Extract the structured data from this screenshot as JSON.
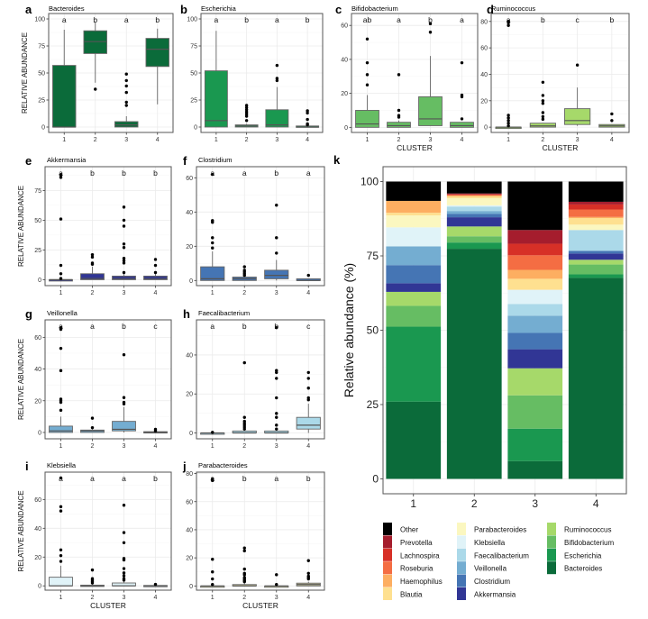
{
  "chart_data": [
    {
      "panel": "a",
      "type": "box",
      "title": "Bacteroides",
      "ylabel": "RELATIVE ABUNDANCE",
      "xlabel": "",
      "categories": [
        "1",
        "2",
        "3",
        "4"
      ],
      "ylim": [
        -5,
        105
      ],
      "yticks": [
        0,
        25,
        50,
        75,
        100
      ],
      "fill": "#0b6b3a",
      "letters": [
        "a",
        "b",
        "a",
        "b"
      ],
      "boxes": [
        {
          "q1": 0,
          "median": 0,
          "q3": 57,
          "lo": 0,
          "hi": 90,
          "outliers": []
        },
        {
          "q1": 68,
          "median": 79,
          "q3": 89,
          "lo": 41,
          "hi": 97,
          "outliers": [
            35
          ]
        },
        {
          "q1": 0,
          "median": 2,
          "q3": 5,
          "lo": 0,
          "hi": 10,
          "outliers": [
            20,
            23,
            32,
            38,
            43,
            49
          ]
        },
        {
          "q1": 56,
          "median": 72,
          "q3": 82,
          "lo": 21,
          "hi": 91,
          "outliers": []
        }
      ]
    },
    {
      "panel": "b",
      "type": "box",
      "title": "Escherichia",
      "ylabel": "",
      "xlabel": "",
      "categories": [
        "1",
        "2",
        "3",
        "4"
      ],
      "ylim": [
        -5,
        105
      ],
      "yticks": [
        0,
        25,
        50,
        75,
        100
      ],
      "fill": "#1a9850",
      "letters": [
        "a",
        "b",
        "a",
        "b"
      ],
      "boxes": [
        {
          "q1": 0,
          "median": 6,
          "q3": 52,
          "lo": 0,
          "hi": 89,
          "outliers": []
        },
        {
          "q1": 0,
          "median": 1,
          "q3": 2,
          "lo": 0,
          "hi": 3,
          "outliers": [
            6,
            10,
            12,
            14,
            16,
            18,
            20
          ]
        },
        {
          "q1": 0,
          "median": 2,
          "q3": 16,
          "lo": 0,
          "hi": 37,
          "outliers": [
            43,
            45,
            57
          ]
        },
        {
          "q1": 0,
          "median": 0,
          "q3": 1,
          "lo": 0,
          "hi": 1,
          "outliers": [
            2,
            3,
            7,
            13,
            15
          ]
        }
      ]
    },
    {
      "panel": "c",
      "type": "box",
      "title": "Bifidobacterium",
      "ylabel": "",
      "xlabel": "CLUSTER",
      "categories": [
        "1",
        "2",
        "3",
        "4"
      ],
      "ylim": [
        -3,
        67
      ],
      "yticks": [
        0,
        20,
        40,
        60
      ],
      "fill": "#66bd63",
      "letters": [
        "ab",
        "a",
        "b",
        "a"
      ],
      "boxes": [
        {
          "q1": 0,
          "median": 2,
          "q3": 10,
          "lo": 0,
          "hi": 19,
          "outliers": [
            25,
            31,
            38,
            52
          ]
        },
        {
          "q1": 0,
          "median": 1,
          "q3": 3,
          "lo": 0,
          "hi": 4,
          "outliers": [
            6,
            7,
            10,
            31
          ]
        },
        {
          "q1": 1,
          "median": 5,
          "q3": 18,
          "lo": 1,
          "hi": 42,
          "outliers": [
            56,
            61
          ]
        },
        {
          "q1": 0,
          "median": 1,
          "q3": 3,
          "lo": 0,
          "hi": 3,
          "outliers": [
            5,
            18,
            19,
            38
          ]
        }
      ]
    },
    {
      "panel": "d",
      "type": "box",
      "title": "Ruminococcus",
      "ylabel": "",
      "xlabel": "CLUSTER",
      "categories": [
        "1",
        "2",
        "3",
        "4"
      ],
      "ylim": [
        -4,
        86
      ],
      "yticks": [
        0,
        20,
        40,
        60,
        80
      ],
      "fill": "#a6d96a",
      "letters": [
        "a",
        "b",
        "c",
        "b"
      ],
      "boxes": [
        {
          "q1": 0,
          "median": 0,
          "q3": 0,
          "lo": 0,
          "hi": 0,
          "outliers": [
            1,
            3,
            5,
            7,
            9,
            77,
            79,
            80
          ]
        },
        {
          "q1": 0,
          "median": 1,
          "q3": 3,
          "lo": 0,
          "hi": 3,
          "outliers": [
            6,
            8,
            11,
            18,
            20,
            24,
            34
          ]
        },
        {
          "q1": 2,
          "median": 5,
          "q3": 14,
          "lo": 1,
          "hi": 30,
          "outliers": [
            47
          ]
        },
        {
          "q1": 0,
          "median": 1,
          "q3": 2,
          "lo": 0,
          "hi": 2,
          "outliers": [
            5,
            10
          ]
        }
      ]
    },
    {
      "panel": "e",
      "type": "box",
      "title": "Akkermansia",
      "ylabel": "RELATIVE ABUNDANCE",
      "xlabel": "",
      "categories": [
        "1",
        "2",
        "3",
        "4"
      ],
      "ylim": [
        -5,
        95
      ],
      "yticks": [
        0,
        25,
        50,
        75
      ],
      "fill": "#313695",
      "letters": [
        "a",
        "b",
        "b",
        "b"
      ],
      "boxes": [
        {
          "q1": 0,
          "median": 0,
          "q3": 0,
          "lo": 0,
          "hi": 0,
          "outliers": [
            1,
            5,
            12,
            51,
            86,
            88
          ]
        },
        {
          "q1": 0,
          "median": 1,
          "q3": 5,
          "lo": 0,
          "hi": 11,
          "outliers": [
            13,
            14,
            19,
            21
          ]
        },
        {
          "q1": 0,
          "median": 1,
          "q3": 3,
          "lo": 0,
          "hi": 5,
          "outliers": [
            6,
            14,
            16,
            18,
            27,
            30,
            45,
            50,
            61
          ]
        },
        {
          "q1": 0,
          "median": 1,
          "q3": 3,
          "lo": 0,
          "hi": 5,
          "outliers": [
            6,
            12,
            17
          ]
        }
      ]
    },
    {
      "panel": "f",
      "type": "box",
      "title": "Clostridium",
      "ylabel": "",
      "xlabel": "",
      "categories": [
        "1",
        "2",
        "3",
        "4"
      ],
      "ylim": [
        -3,
        66.5
      ],
      "yticks": [
        0,
        20,
        40,
        60
      ],
      "fill": "#4575b4",
      "letters": [
        "a",
        "a",
        "b",
        "a"
      ],
      "boxes": [
        {
          "q1": 0,
          "median": 1,
          "q3": 8,
          "lo": 0,
          "hi": 17,
          "outliers": [
            19,
            22,
            25,
            34,
            35,
            62
          ]
        },
        {
          "q1": 0,
          "median": 1,
          "q3": 2,
          "lo": 0,
          "hi": 2,
          "outliers": [
            3,
            4,
            5,
            6,
            8
          ]
        },
        {
          "q1": 1,
          "median": 3,
          "q3": 6,
          "lo": 0,
          "hi": 12,
          "outliers": [
            16,
            25,
            44
          ]
        },
        {
          "q1": 0,
          "median": 0,
          "q3": 1,
          "lo": 0,
          "hi": 1,
          "outliers": [
            3
          ]
        }
      ]
    },
    {
      "panel": "g",
      "type": "box",
      "title": "Veillonella",
      "ylabel": "RELATIVE ABUNDANCE",
      "xlabel": "",
      "categories": [
        "1",
        "2",
        "3",
        "4"
      ],
      "ylim": [
        -4,
        71
      ],
      "yticks": [
        0,
        20,
        40,
        60
      ],
      "fill": "#74add1",
      "letters": [
        "a",
        "a",
        "b",
        "c"
      ],
      "boxes": [
        {
          "q1": 0,
          "median": 1,
          "q3": 4,
          "lo": 0,
          "hi": 10,
          "outliers": [
            14,
            19,
            20,
            21,
            39,
            53,
            65,
            66
          ]
        },
        {
          "q1": 0,
          "median": 1,
          "q3": 1.5,
          "lo": 0,
          "hi": 2,
          "outliers": [
            3,
            9
          ]
        },
        {
          "q1": 1,
          "median": 2,
          "q3": 7,
          "lo": 0,
          "hi": 16,
          "outliers": [
            18,
            19,
            22,
            49
          ]
        },
        {
          "q1": 0,
          "median": 0,
          "q3": 0.5,
          "lo": 0,
          "hi": 0.5,
          "outliers": [
            1,
            2
          ]
        }
      ]
    },
    {
      "panel": "h",
      "type": "box",
      "title": "Faecalibacterium",
      "ylabel": "",
      "xlabel": "",
      "categories": [
        "1",
        "2",
        "3",
        "4"
      ],
      "ylim": [
        -3,
        58
      ],
      "yticks": [
        0,
        20,
        40
      ],
      "fill": "#abd9e9",
      "letters": [
        "a",
        "b",
        "b",
        "c"
      ],
      "boxes": [
        {
          "q1": 0,
          "median": 0,
          "q3": 0,
          "lo": 0,
          "hi": 0,
          "outliers": [
            0.3
          ]
        },
        {
          "q1": 0,
          "median": 0,
          "q3": 1,
          "lo": 0,
          "hi": 1,
          "outliers": [
            2,
            3,
            4,
            5,
            6,
            8,
            36
          ]
        },
        {
          "q1": 0,
          "median": 0,
          "q3": 1,
          "lo": 0,
          "hi": 1,
          "outliers": [
            2,
            4,
            8,
            10,
            18,
            28,
            31,
            32,
            54
          ]
        },
        {
          "q1": 2,
          "median": 4,
          "q3": 8,
          "lo": 0,
          "hi": 15,
          "outliers": [
            17,
            18,
            23,
            28,
            31
          ]
        }
      ]
    },
    {
      "panel": "i",
      "type": "box",
      "title": "Klebsiella",
      "ylabel": "RELATIVE ABUNDANCE",
      "xlabel": "CLUSTER",
      "categories": [
        "1",
        "2",
        "3",
        "4"
      ],
      "ylim": [
        -3,
        79
      ],
      "yticks": [
        0,
        20,
        40,
        60
      ],
      "fill": "#e0f3f8",
      "letters": [
        "a",
        "a",
        "a",
        "b"
      ],
      "boxes": [
        {
          "q1": 0,
          "median": 0,
          "q3": 6,
          "lo": 0,
          "hi": 14,
          "outliers": [
            17,
            21,
            25,
            52,
            55,
            75
          ]
        },
        {
          "q1": 0,
          "median": 0,
          "q3": 0.5,
          "lo": 0,
          "hi": 1,
          "outliers": [
            2,
            3,
            4,
            5,
            11
          ]
        },
        {
          "q1": 0,
          "median": 0,
          "q3": 2,
          "lo": 0,
          "hi": 3,
          "outliers": [
            4,
            5,
            7,
            9,
            12,
            18,
            19,
            30,
            37,
            56
          ]
        },
        {
          "q1": 0,
          "median": 0,
          "q3": 0.3,
          "lo": 0,
          "hi": 0.3,
          "outliers": [
            1
          ]
        }
      ]
    },
    {
      "panel": "j",
      "type": "box",
      "title": "Parabacteroides",
      "ylabel": "",
      "xlabel": "CLUSTER",
      "categories": [
        "1",
        "2",
        "3",
        "4"
      ],
      "ylim": [
        -3,
        81
      ],
      "yticks": [
        0,
        20,
        40,
        60,
        80
      ],
      "fill": "#d9d6a6",
      "letters": [
        "a",
        "b",
        "a",
        "b"
      ],
      "boxes": [
        {
          "q1": 0,
          "median": 0,
          "q3": 0,
          "lo": 0,
          "hi": 0,
          "outliers": [
            1,
            5,
            10,
            19,
            75,
            76
          ]
        },
        {
          "q1": 0,
          "median": 0,
          "q3": 1,
          "lo": 0,
          "hi": 2,
          "outliers": [
            3,
            4,
            5,
            6,
            8,
            9,
            12,
            25,
            27
          ]
        },
        {
          "q1": 0,
          "median": 0,
          "q3": 0,
          "lo": 0,
          "hi": 0,
          "outliers": [
            1,
            8
          ]
        },
        {
          "q1": 0,
          "median": 1,
          "q3": 2,
          "lo": 0,
          "hi": 3,
          "outliers": [
            5,
            6,
            7,
            9,
            18
          ]
        }
      ]
    },
    {
      "panel": "k",
      "type": "bar",
      "stacked": true,
      "title": "",
      "ylabel": "Relative abundance (%)",
      "xlabel": "",
      "categories": [
        "1",
        "2",
        "3",
        "4"
      ],
      "ylim": [
        -5,
        105
      ],
      "yticks": [
        0,
        25,
        50,
        75,
        100
      ],
      "legend_placement": "bottom",
      "series": [
        {
          "name": "Bacteroides",
          "color": "#0b6b3a",
          "values": [
            26.0,
            77.4,
            6.0,
            67.6
          ]
        },
        {
          "name": "Escherichia",
          "color": "#1a9850",
          "values": [
            25.2,
            2.1,
            10.9,
            1.2
          ]
        },
        {
          "name": "Bifidobacterium",
          "color": "#66bd63",
          "values": [
            7.0,
            2.1,
            11.2,
            3.3
          ]
        },
        {
          "name": "Ruminococcus",
          "color": "#a6d96a",
          "values": [
            4.7,
            3.3,
            9.1,
            1.6
          ]
        },
        {
          "name": "Akkermansia",
          "color": "#313695",
          "values": [
            2.9,
            3.1,
            6.4,
            2.1
          ]
        },
        {
          "name": "Clostridium",
          "color": "#4575b4",
          "values": [
            6.1,
            1.1,
            5.5,
            0.9
          ]
        },
        {
          "name": "Veillonella",
          "color": "#74add1",
          "values": [
            6.3,
            1.0,
            5.8,
            0
          ]
        },
        {
          "name": "Faecalibacterium",
          "color": "#abd9e9",
          "values": [
            0,
            1.5,
            3.9,
            7.0
          ]
        },
        {
          "name": "Klebsiella",
          "color": "#e0f3f8",
          "values": [
            6.4,
            0.4,
            4.8,
            0
          ]
        },
        {
          "name": "Parabacteroides",
          "color": "#fbf7c0",
          "values": [
            4.0,
            2.4,
            0,
            1.8
          ]
        },
        {
          "name": "Blautia",
          "color": "#fee090",
          "values": [
            0.9,
            0.6,
            3.7,
            2.2
          ]
        },
        {
          "name": "Haemophilus",
          "color": "#fdae61",
          "values": [
            4.0,
            0.3,
            3.0,
            0.4
          ]
        },
        {
          "name": "Roseburia",
          "color": "#f46d43",
          "values": [
            0,
            0.2,
            4.9,
            2.5
          ]
        },
        {
          "name": "Lachnospira",
          "color": "#d73027",
          "values": [
            0,
            0.2,
            3.9,
            1.7
          ]
        },
        {
          "name": "Prevotella",
          "color": "#a51d2d",
          "values": [
            0,
            0.3,
            4.6,
            0.9
          ]
        },
        {
          "name": "Other",
          "color": "#000000",
          "values": [
            6.5,
            4.0,
            16.3,
            6.8
          ]
        }
      ],
      "legend_order": [
        "Other",
        "Prevotella",
        "Lachnospira",
        "Roseburia",
        "Haemophilus",
        "Blautia",
        "Parabacteroides",
        "Klebsiella",
        "Faecalibacterium",
        "Veillonella",
        "Clostridium",
        "Akkermansia",
        "Ruminococcus",
        "Bifidobacterium",
        "Escherichia",
        "Bacteroides"
      ]
    }
  ]
}
